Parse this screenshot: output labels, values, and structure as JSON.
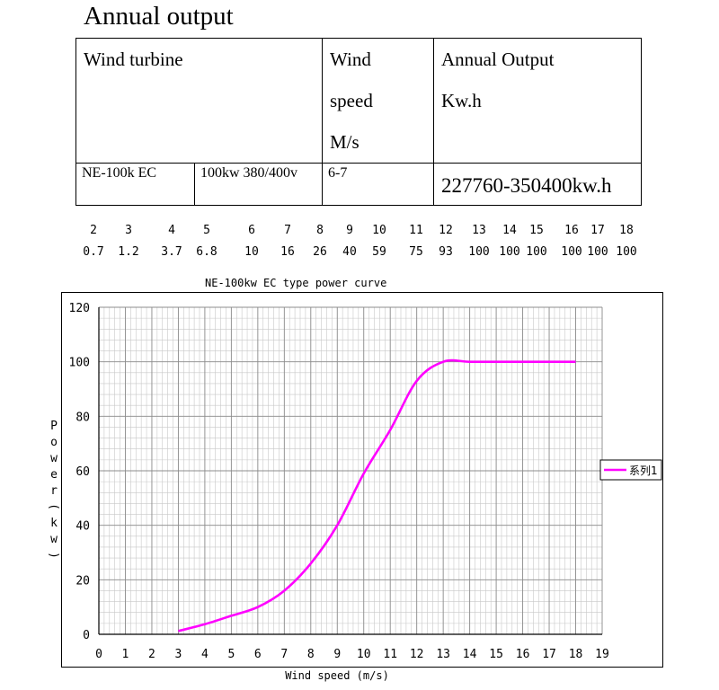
{
  "page_title": "Annual output",
  "spec_table": {
    "headers": [
      "Wind turbine",
      "Wind speed M/s",
      "Annual Output Kw.h"
    ],
    "header_wind_speed_lines": [
      "Wind",
      "speed",
      "M/s"
    ],
    "header_output_lines": [
      "Annual Output",
      "Kw.h"
    ],
    "row": {
      "model": "NE-100k EC",
      "rating": "100kw 380/400v",
      "wind_speed": "6-7",
      "annual_output": "227760-350400kw.h"
    }
  },
  "speed_power_table": {
    "speeds": [
      "2",
      "3",
      "4",
      "5",
      "6",
      "7",
      "8",
      "9",
      "10",
      "11",
      "12",
      "13",
      "14",
      "15",
      "16",
      "17",
      "18"
    ],
    "powers": [
      "0.7",
      "1.2",
      "3.7",
      "6.8",
      "10",
      "16",
      "26",
      "40",
      "59",
      "75",
      "93",
      "100",
      "100",
      "100",
      "100",
      "100",
      "100"
    ]
  },
  "chart_data": {
    "type": "line",
    "title": "NE-100kw EC type power curve",
    "xlabel": "Wind speed (m/s)",
    "ylabel": "Power(kw)",
    "xlim": [
      0,
      19
    ],
    "ylim": [
      0,
      120
    ],
    "x_ticks": [
      0,
      1,
      2,
      3,
      4,
      5,
      6,
      7,
      8,
      9,
      10,
      11,
      12,
      13,
      14,
      15,
      16,
      17,
      18,
      19
    ],
    "y_ticks": [
      0,
      20,
      40,
      60,
      80,
      100,
      120
    ],
    "grid": true,
    "legend_position": "right",
    "series": [
      {
        "name": "系列1",
        "color": "#ff00ff",
        "x": [
          3,
          4,
          5,
          6,
          7,
          8,
          9,
          10,
          11,
          12,
          13,
          14,
          15,
          16,
          17,
          18
        ],
        "y": [
          1.2,
          3.7,
          6.8,
          10,
          16,
          26,
          40,
          59,
          75,
          93,
          100,
          100,
          100,
          100,
          100,
          100
        ]
      }
    ]
  }
}
